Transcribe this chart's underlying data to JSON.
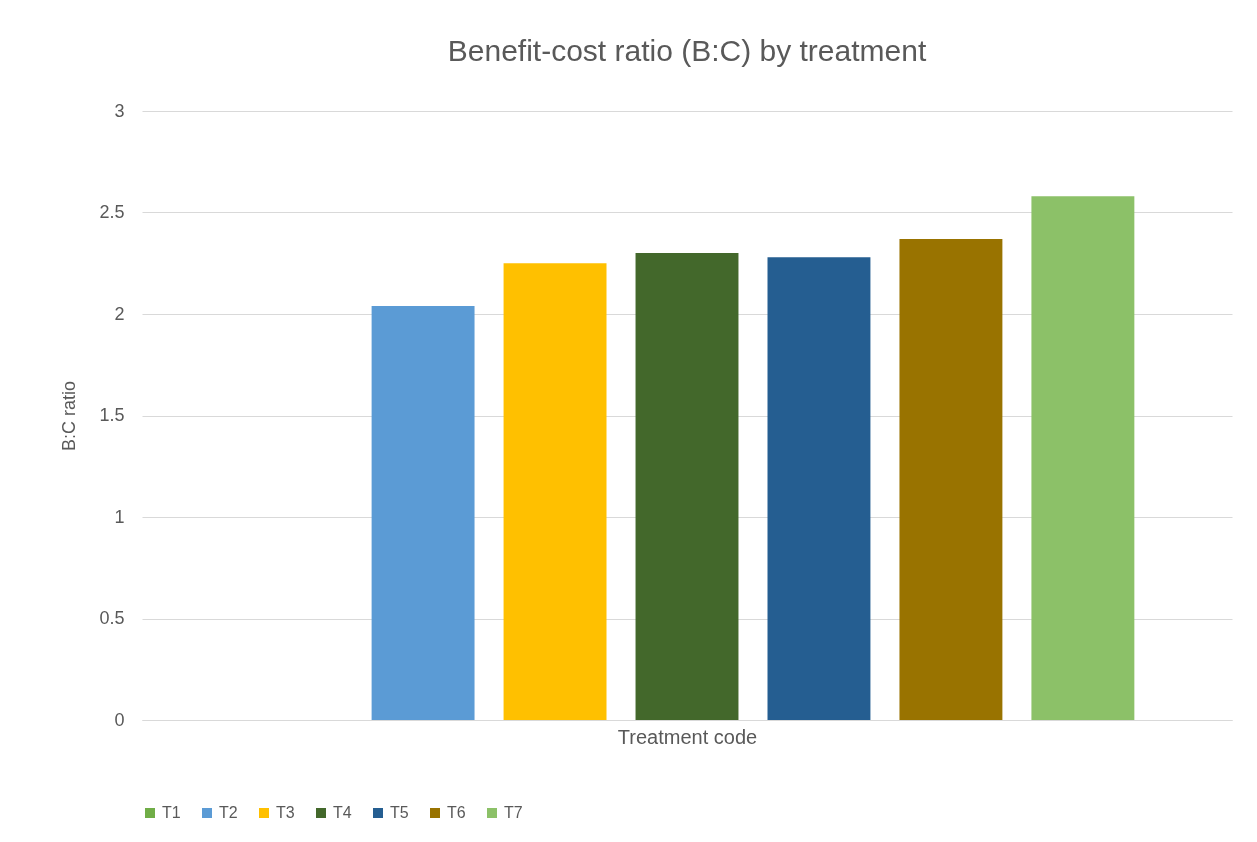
{
  "chart_data": {
    "type": "bar",
    "title": "Benefit-cost ratio (B:C) by treatment",
    "xlabel": "Treatment code",
    "ylabel": "B:C ratio",
    "categories": [
      null
    ],
    "series": [
      {
        "name": "T1",
        "color": "#70ad47",
        "values": [
          0
        ]
      },
      {
        "name": "T2",
        "color": "#5b9bd5",
        "values": [
          2.04
        ]
      },
      {
        "name": "T3",
        "color": "#ffc000",
        "values": [
          2.25
        ]
      },
      {
        "name": "T4",
        "color": "#43682b",
        "values": [
          2.3
        ]
      },
      {
        "name": "T5",
        "color": "#255e91",
        "values": [
          2.28
        ]
      },
      {
        "name": "T6",
        "color": "#997300",
        "values": [
          2.37
        ]
      },
      {
        "name": "T7",
        "color": "#8cc168",
        "values": [
          2.58
        ]
      }
    ],
    "ylim": [
      0,
      3
    ],
    "yticks": [
      0,
      0.5,
      1,
      1.5,
      2,
      2.5,
      3
    ],
    "grid": "y",
    "legend": "bottom"
  }
}
